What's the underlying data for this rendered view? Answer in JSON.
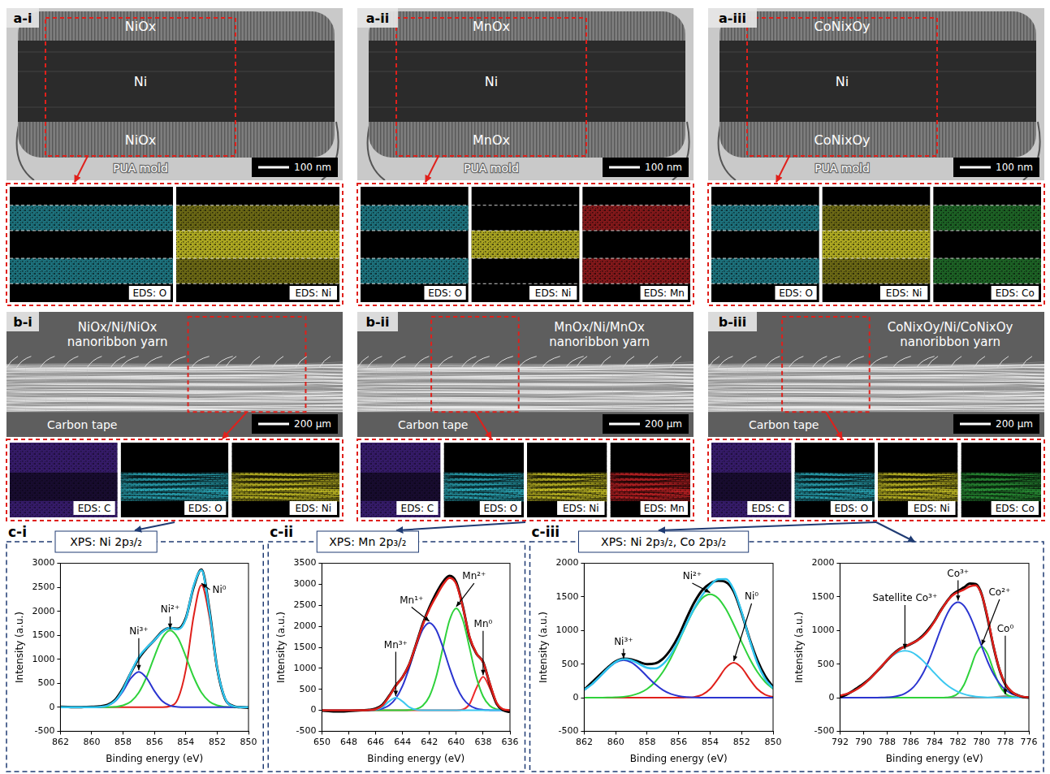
{
  "tem_panels": [
    {
      "tag": "a-i",
      "layers": [
        "NiOx",
        "Ni",
        "NiOx"
      ],
      "mold": "PUA mold",
      "scale_bar": "100 nm",
      "eds": [
        {
          "label": "EDS: O",
          "color": "#2fb6c8"
        },
        {
          "label": "EDS: Ni",
          "color": "#d6cf2a"
        }
      ]
    },
    {
      "tag": "a-ii",
      "layers": [
        "MnOx",
        "Ni",
        "MnOx"
      ],
      "mold": "PUA mold",
      "scale_bar": "100 nm",
      "eds": [
        {
          "label": "EDS: O",
          "color": "#2fb6c8"
        },
        {
          "label": "EDS: Ni",
          "color": "#d6cf2a"
        },
        {
          "label": "EDS: Mn",
          "color": "#d3262a"
        }
      ]
    },
    {
      "tag": "a-iii",
      "layers": [
        "CoNixOy",
        "Ni",
        "CoNixOy"
      ],
      "mold": "PUA mold",
      "scale_bar": "100 nm",
      "eds": [
        {
          "label": "EDS: O",
          "color": "#2fb6c8"
        },
        {
          "label": "EDS: Ni",
          "color": "#d6cf2a"
        },
        {
          "label": "EDS: Co",
          "color": "#2e9e3c"
        }
      ]
    }
  ],
  "sem_panels": [
    {
      "tag": "b-i",
      "yarn": "NiOx/Ni/NiOx nanoribbon yarn",
      "substrate": "Carbon tape",
      "scale_bar": "200 μm",
      "eds": [
        {
          "label": "EDS: C",
          "color": "#6a35d0"
        },
        {
          "label": "EDS: O",
          "color": "#2fb6c8"
        },
        {
          "label": "EDS: Ni",
          "color": "#d6cf2a"
        }
      ]
    },
    {
      "tag": "b-ii",
      "yarn": "MnOx/Ni/MnOx nanoribbon yarn",
      "substrate": "Carbon tape",
      "scale_bar": "200 μm",
      "eds": [
        {
          "label": "EDS: C",
          "color": "#6a35d0"
        },
        {
          "label": "EDS: O",
          "color": "#2fb6c8"
        },
        {
          "label": "EDS: Ni",
          "color": "#d6cf2a"
        },
        {
          "label": "EDS: Mn",
          "color": "#d3262a"
        }
      ]
    },
    {
      "tag": "b-iii",
      "yarn": "CoNixOy/Ni/CoNixOy nanoribbon yarn",
      "substrate": "Carbon tape",
      "scale_bar": "200 μm",
      "eds": [
        {
          "label": "EDS: C",
          "color": "#6a35d0"
        },
        {
          "label": "EDS: O",
          "color": "#2fb6c8"
        },
        {
          "label": "EDS: Ni",
          "color": "#d6cf2a"
        },
        {
          "label": "EDS: Co",
          "color": "#2e9e3c"
        }
      ]
    }
  ],
  "xps_panels": [
    {
      "tag": "c-i",
      "title": "XPS: Ni 2p₃/₂"
    },
    {
      "tag": "c-ii",
      "title": "XPS: Mn 2p₃/₂"
    },
    {
      "tag": "c-iii",
      "title": "XPS: Ni 2p₃/₂, Co 2p₃/₂"
    }
  ],
  "chart_data": [
    {
      "type": "line",
      "panel": "c-i",
      "x_label": "Binding energy (eV)",
      "y_label": "Intensity (a.u.)",
      "grid": false,
      "x": [
        862,
        861.5,
        861,
        860.5,
        860,
        859.5,
        859,
        858.5,
        858,
        857.5,
        857,
        856.5,
        856,
        855.5,
        855,
        854.5,
        854,
        853.5,
        853,
        852.5,
        852,
        851.5,
        851,
        850.5,
        850
      ],
      "xlim": [
        862,
        850
      ],
      "xticks": [
        862,
        860,
        858,
        856,
        854,
        852,
        850
      ],
      "ylim": [
        -500,
        3000
      ],
      "yticks": [
        -500,
        0,
        500,
        1000,
        1500,
        2000,
        2500,
        3000
      ],
      "series": [
        {
          "color": "#30c5ef",
          "values": [
            0,
            0,
            0,
            0,
            0,
            6,
            35,
            138,
            378,
            730,
            1046,
            1241,
            1398,
            1571,
            1655,
            1626,
            1841,
            2529,
            2856,
            2018,
            821,
            187,
            24,
            1,
            0
          ]
        },
        {
          "color": "#000000",
          "values": [
            10,
            5,
            0,
            5,
            10,
            20,
            50,
            160,
            400,
            720,
            1020,
            1230,
            1400,
            1580,
            1650,
            1640,
            1860,
            2500,
            2870,
            2050,
            820,
            180,
            30,
            0,
            -10
          ]
        },
        {
          "name": "Ni³⁺",
          "color": "#2b35d0",
          "values": [
            0,
            0,
            0,
            0,
            0,
            6,
            33,
            128,
            339,
            609,
            740,
            609,
            339,
            128,
            33,
            6,
            0,
            0,
            0,
            0,
            0,
            0,
            0,
            0,
            0
          ]
        },
        {
          "name": "Ni²⁺",
          "color": "#2fd23c",
          "values": [
            0,
            0,
            0,
            0,
            0,
            0,
            2,
            10,
            39,
            121,
            306,
            632,
            1059,
            1443,
            1600,
            1443,
            1059,
            632,
            306,
            121,
            39,
            10,
            2,
            0,
            0
          ]
        },
        {
          "name": "Ni⁰",
          "color": "#e0201b",
          "values": [
            0,
            0,
            0,
            0,
            0,
            0,
            0,
            0,
            0,
            0,
            0,
            0,
            0,
            1,
            22,
            177,
            782,
            1897,
            2550,
            1897,
            782,
            177,
            22,
            1,
            0
          ]
        }
      ]
    },
    {
      "type": "line",
      "panel": "c-ii",
      "x_label": "Binding energy (eV)",
      "y_label": "Intensity (a.u.)",
      "grid": false,
      "x": [
        650,
        649.5,
        649,
        648.5,
        648,
        647.5,
        647,
        646.5,
        646,
        645.5,
        645,
        644.5,
        644,
        643.5,
        643,
        642.5,
        642,
        641.5,
        641,
        640.5,
        640,
        639.5,
        639,
        638.5,
        638,
        637.5,
        637,
        636.5,
        636
      ],
      "xlim": [
        650,
        636
      ],
      "xticks": [
        650,
        648,
        646,
        644,
        642,
        640,
        638,
        636
      ],
      "ylim": [
        -500,
        3500
      ],
      "yticks": [
        -500,
        0,
        500,
        1000,
        1500,
        2000,
        2500,
        3000,
        3500
      ],
      "series": [
        {
          "color": "#e0201b",
          "values": [
            0,
            0,
            0,
            0,
            0,
            0,
            0,
            4,
            25,
            116,
            329,
            582,
            791,
            1092,
            1550,
            2028,
            2409,
            2709,
            2984,
            3155,
            3009,
            2444,
            1744,
            1359,
            1141,
            639,
            180,
            24,
            2
          ]
        },
        {
          "color": "#000000",
          "values": [
            -10,
            -20,
            -30,
            -30,
            -20,
            -10,
            0,
            10,
            40,
            130,
            340,
            590,
            790,
            1090,
            1560,
            2050,
            2450,
            2780,
            3050,
            3200,
            3050,
            2460,
            1720,
            1350,
            1150,
            620,
            160,
            0,
            -40
          ]
        },
        {
          "name": "Mn³⁺",
          "color": "#3cc8f0",
          "values": [
            0,
            0,
            0,
            0,
            0,
            0,
            0,
            1,
            13,
            75,
            212,
            300,
            212,
            75,
            13,
            1,
            0,
            0,
            0,
            0,
            0,
            0,
            0,
            0,
            0,
            0,
            0,
            0,
            0
          ]
        },
        {
          "name": "Mn¹⁺",
          "color": "#2b35d0",
          "values": [
            0,
            0,
            0,
            0,
            0,
            0,
            0,
            3,
            12,
            41,
            117,
            282,
            578,
            1012,
            1510,
            1920,
            2080,
            1920,
            1510,
            1012,
            578,
            282,
            117,
            41,
            12,
            3,
            0,
            0,
            0
          ]
        },
        {
          "name": "Mn²⁺",
          "color": "#2fd23c",
          "values": [
            0,
            0,
            0,
            0,
            0,
            0,
            0,
            0,
            0,
            0,
            0,
            0,
            1,
            5,
            27,
            107,
            329,
            789,
            1474,
            2143,
            2430,
            2143,
            1474,
            789,
            329,
            107,
            27,
            5,
            1
          ]
        },
        {
          "name": "Mn⁰",
          "color": "#ee2a2a",
          "values": [
            0,
            0,
            0,
            0,
            0,
            0,
            0,
            0,
            0,
            0,
            0,
            0,
            0,
            0,
            0,
            0,
            0,
            0,
            0,
            0,
            1,
            19,
            153,
            529,
            800,
            529,
            153,
            19,
            1
          ]
        }
      ]
    },
    {
      "type": "line",
      "panel": "c-iii",
      "x_label": "Binding energy (eV)",
      "y_label": "Intensity (a.u.)",
      "grid": false,
      "x": [
        862,
        861.5,
        861,
        860.5,
        860,
        859.5,
        859,
        858.5,
        858,
        857.5,
        857,
        856.5,
        856,
        855.5,
        855,
        854.5,
        854,
        853.5,
        853,
        852.5,
        852,
        851.5,
        851,
        850.5,
        850
      ],
      "xlim": [
        862,
        850
      ],
      "xticks": [
        862,
        860,
        858,
        856,
        854,
        852,
        850
      ],
      "ylim": [
        -500,
        2000
      ],
      "yticks": [
        -500,
        0,
        500,
        1000,
        1500,
        2000
      ],
      "series": [
        {
          "color": "#30c5ef",
          "values": [
            114,
            202,
            316,
            436,
            531,
            574,
            557,
            502,
            445,
            435,
            498,
            643,
            856,
            1100,
            1334,
            1527,
            1670,
            1762,
            1766,
            1609,
            1277,
            867,
            514,
            277,
            141
          ]
        },
        {
          "color": "#000000",
          "values": [
            120,
            230,
            340,
            450,
            540,
            580,
            570,
            530,
            500,
            510,
            580,
            720,
            920,
            1180,
            1420,
            1600,
            1700,
            1740,
            1720,
            1580,
            1260,
            880,
            560,
            320,
            160
          ]
        },
        {
          "name": "Ni³⁺",
          "color": "#2b35d0",
          "values": [
            114,
            202,
            315,
            434,
            525,
            560,
            525,
            434,
            315,
            202,
            114,
            56,
            25,
            9,
            3,
            1,
            0,
            0,
            0,
            0,
            0,
            0,
            0,
            0,
            0
          ]
        },
        {
          "name": "Ni²⁺",
          "color": "#2fd23c",
          "values": [
            0,
            0,
            1,
            2,
            6,
            14,
            32,
            68,
            130,
            233,
            384,
            587,
            831,
            1089,
            1320,
            1482,
            1540,
            1482,
            1320,
            1089,
            831,
            587,
            384,
            233,
            130
          ]
        },
        {
          "name": "Ni⁰",
          "color": "#e0201b",
          "values": [
            0,
            0,
            0,
            0,
            0,
            0,
            0,
            0,
            0,
            0,
            0,
            0,
            0,
            2,
            11,
            44,
            130,
            280,
            446,
            520,
            446,
            280,
            130,
            44,
            11
          ]
        }
      ]
    },
    {
      "type": "line",
      "panel": "c-iii",
      "x_label": "Binding energy (eV)",
      "y_label": "Intensity (a.u.)",
      "grid": false,
      "x": [
        792,
        791.5,
        791,
        790.5,
        790,
        789.5,
        789,
        788.5,
        788,
        787.5,
        787,
        786.5,
        786,
        785.5,
        785,
        784.5,
        784,
        783.5,
        783,
        782.5,
        782,
        781.5,
        781,
        780.5,
        780,
        779.5,
        779,
        778.5,
        778,
        777.5,
        777,
        776.5,
        776
      ],
      "xlim": [
        792,
        776
      ],
      "xticks": [
        792,
        790,
        788,
        786,
        784,
        782,
        780,
        778,
        776
      ],
      "ylim": [
        -500,
        2000
      ],
      "yticks": [
        -500,
        0,
        500,
        1000,
        1500,
        2000
      ],
      "series": [
        {
          "color": "#e0201b",
          "values": [
            31,
            53,
            87,
            134,
            197,
            276,
            368,
            465,
            561,
            644,
            712,
            763,
            802,
            846,
            909,
            1004,
            1133,
            1280,
            1417,
            1517,
            1571,
            1610,
            1657,
            1673,
            1535,
            1198,
            771,
            424,
            209,
            97,
            39,
            14,
            6
          ]
        },
        {
          "color": "#000000",
          "values": [
            10,
            40,
            90,
            150,
            210,
            280,
            370,
            460,
            560,
            650,
            720,
            760,
            800,
            850,
            920,
            1020,
            1140,
            1290,
            1420,
            1530,
            1590,
            1640,
            1700,
            1690,
            1540,
            1180,
            760,
            420,
            200,
            90,
            40,
            10,
            0
          ]
        },
        {
          "name": "Satellite Co³⁺",
          "color": "#3cc8f0",
          "values": [
            31,
            53,
            87,
            134,
            197,
            276,
            367,
            463,
            555,
            631,
            682,
            700,
            682,
            631,
            555,
            463,
            367,
            276,
            197,
            134,
            87,
            53,
            31,
            17,
            9,
            4,
            2,
            1,
            0,
            0,
            0,
            0,
            0
          ]
        },
        {
          "name": "Co³⁺",
          "color": "#2b35d0",
          "values": [
            0,
            0,
            0,
            0,
            0,
            0,
            1,
            2,
            6,
            13,
            30,
            63,
            120,
            215,
            354,
            541,
            766,
            1004,
            1217,
            1367,
            1420,
            1367,
            1217,
            1004,
            766,
            541,
            354,
            215,
            120,
            63,
            30,
            13,
            6
          ]
        },
        {
          "name": "Co²⁺",
          "color": "#2fd23c",
          "values": [
            0,
            0,
            0,
            0,
            0,
            0,
            0,
            0,
            0,
            0,
            0,
            0,
            0,
            0,
            0,
            0,
            0,
            0,
            3,
            16,
            64,
            190,
            409,
            652,
            760,
            652,
            409,
            190,
            64,
            16,
            3,
            0,
            0
          ]
        },
        {
          "name": "Co⁰",
          "color": "#8c8c8c",
          "values": [
            0,
            0,
            0,
            0,
            0,
            0,
            0,
            0,
            0,
            0,
            0,
            0,
            0,
            0,
            0,
            0,
            0,
            0,
            0,
            0,
            0,
            0,
            0,
            0,
            0,
            1,
            6,
            18,
            25,
            18,
            6,
            1,
            0
          ]
        }
      ]
    }
  ]
}
